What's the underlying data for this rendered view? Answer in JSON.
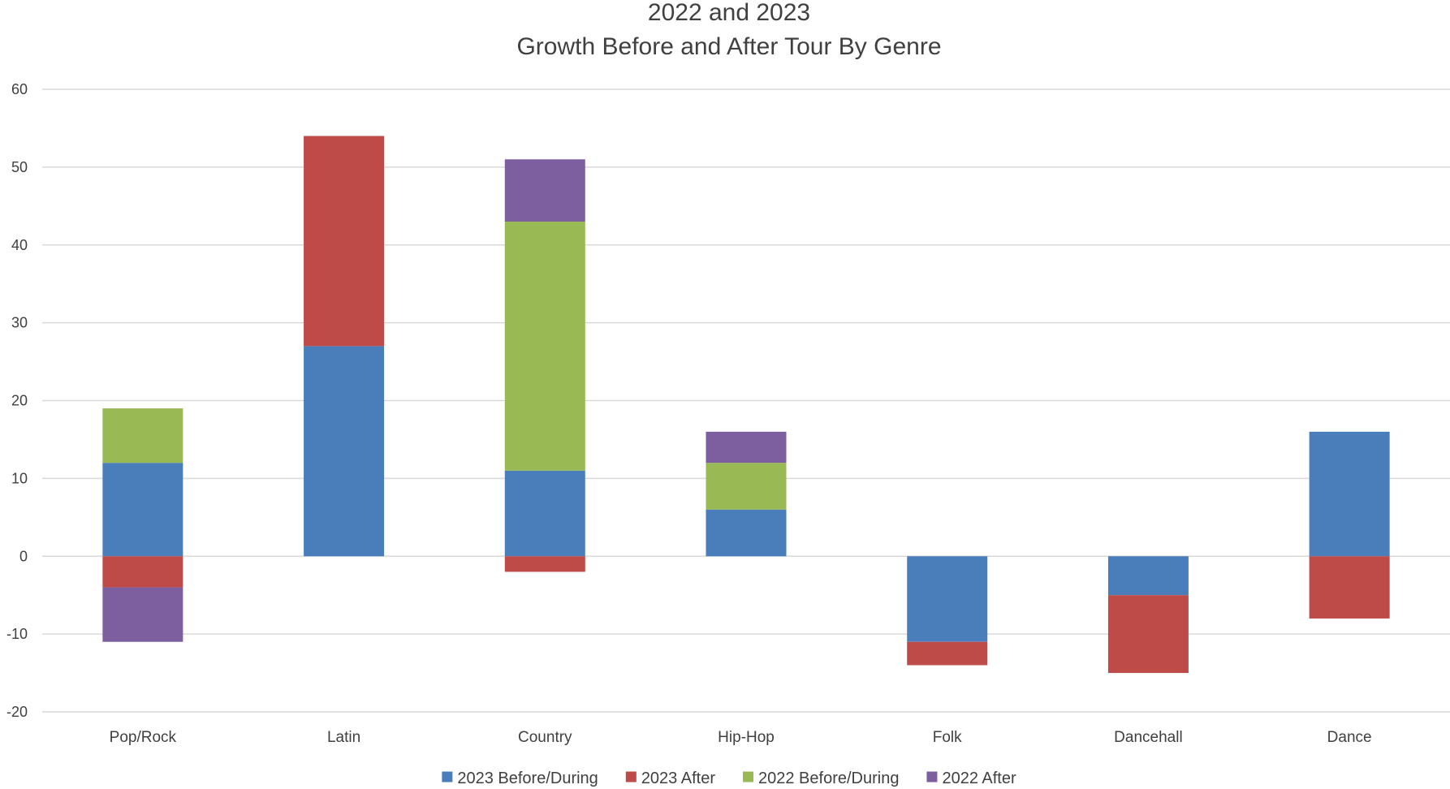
{
  "chart_data": {
    "type": "bar",
    "stacked": true,
    "title": [
      "2022 and 2023",
      "Growth Before and After Tour By Genre"
    ],
    "categories": [
      "Pop/Rock",
      "Latin",
      "Country",
      "Hip-Hop",
      "Folk",
      "Dancehall",
      "Dance"
    ],
    "series": [
      {
        "name": "2023 Before/During",
        "color": "#4a7ebb",
        "values": [
          12,
          27,
          11,
          6,
          -11,
          -5,
          16
        ]
      },
      {
        "name": "2023 After",
        "color": "#be4b48",
        "values": [
          -4,
          27,
          -2,
          0,
          -3,
          -10,
          -8
        ]
      },
      {
        "name": "2022 Before/During",
        "color": "#98b954",
        "values": [
          7,
          0,
          32,
          6,
          0,
          0,
          0
        ]
      },
      {
        "name": "2022 After",
        "color": "#7d5fa0",
        "values": [
          -7,
          0,
          8,
          4,
          0,
          0,
          0
        ]
      }
    ],
    "ylim": [
      -20,
      60
    ],
    "yticks": [
      -20,
      -10,
      0,
      10,
      20,
      30,
      40,
      50,
      60
    ],
    "grid": true,
    "legend_position": "bottom"
  }
}
